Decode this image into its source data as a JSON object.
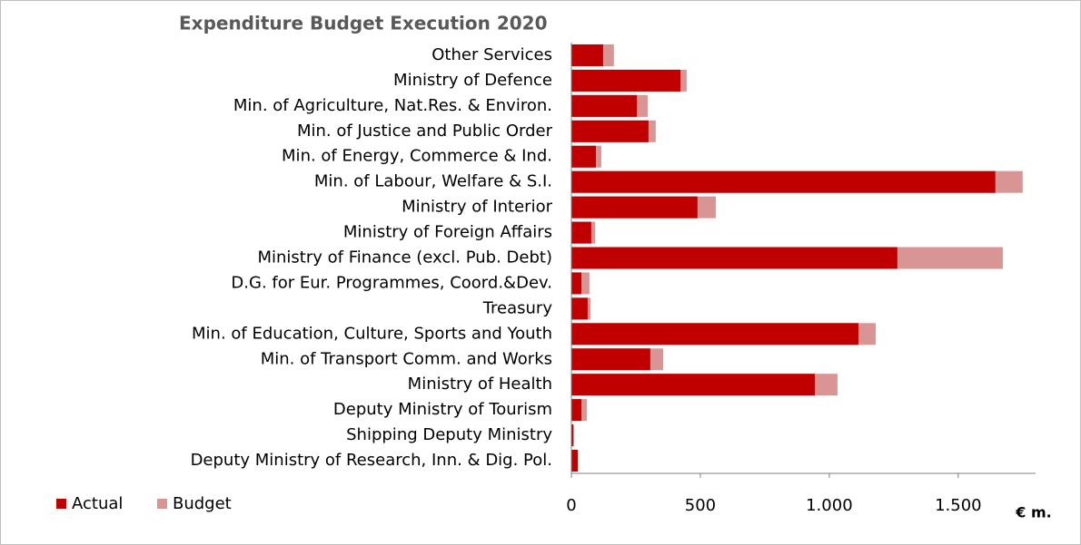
{
  "chart_data": {
    "type": "hbar_overlap",
    "title": "Expenditure Budget Execution 2020",
    "x_label": "€ m.",
    "categories": [
      "Other Services",
      "Ministry of Defence",
      "Min. of Agriculture, Nat.Res. & Environ.",
      "Min. of Justice and Public Order",
      "Min. of Energy, Commerce & Ind.",
      "Min. of Labour, Welfare & S.I.",
      "Ministry of Interior",
      "Ministry of Foreign Affairs",
      "Ministry of Finance (excl. Pub. Debt)",
      "D.G. for Eur. Programmes, Coord.&Dev.",
      "Treasury",
      "Min. of Education, Culture, Sports and Youth",
      "Min. of Transport Comm. and Works",
      "Ministry of Health",
      "Deputy Ministry of Tourism",
      "Shipping Deputy Ministry",
      "Deputy Ministry of Research, Inn. & Dig. Pol."
    ],
    "series": [
      {
        "name": "Budget",
        "color": "#d99594",
        "values": [
          165,
          447,
          296,
          327,
          116,
          1750,
          560,
          92,
          1673,
          70,
          74,
          1180,
          356,
          1032,
          60,
          10,
          26
        ]
      },
      {
        "name": "Actual",
        "color": "#c00000",
        "values": [
          123,
          423,
          254,
          299,
          95,
          1644,
          489,
          77,
          1264,
          39,
          63,
          1113,
          306,
          944,
          39,
          7,
          25
        ]
      }
    ],
    "legend_order": [
      "Actual",
      "Budget"
    ],
    "xlim": [
      0,
      1800
    ],
    "xticks": [
      0,
      500,
      {
        "value": 1000,
        "label": "1.000"
      },
      {
        "value": 1500,
        "label": "1.500"
      }
    ]
  }
}
